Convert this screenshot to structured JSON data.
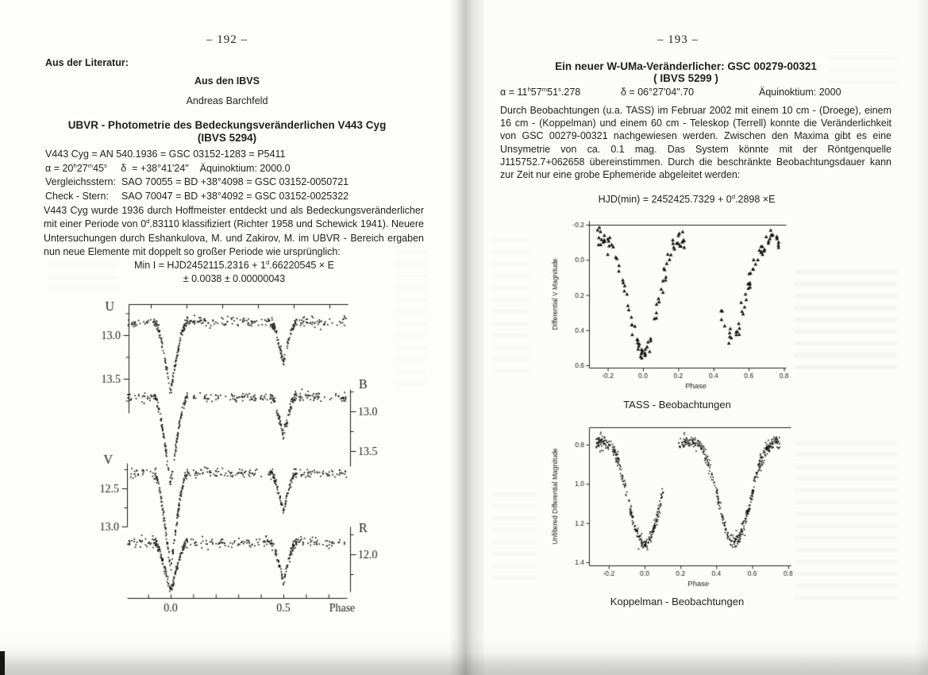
{
  "left_page": {
    "page_number": "–  192  –",
    "section_label": "Aus der Literatur:",
    "source_heading": "Aus den IBVS",
    "author": "Andreas Barchfeld",
    "title_line1": "UBVR - Photometrie des Bedeckungsveränderlichen V443 Cyg",
    "title_line2": "(IBVS 5294)",
    "object_info": {
      "line1": "V443 Cyg = AN 540.1936 = GSC 03152-1283 = P5411",
      "line2": "α = 20^{h}27^{m}45^{s}     δ  = +38°41'24\"    Äquinoktium: 2000.0",
      "line3_label": "Vergleichsstern:",
      "line3_value": "SAO 70055 = BD +38°4098 = GSC 03152-0050721",
      "line4_label": "Check - Stern:",
      "line4_value": "SAO 70047 = BD +38°4092 = GSC 03152-0025322"
    },
    "paragraph": "V443 Cyg wurde 1936 durch Hoffmeister entdeckt und als Bedeckungsveränderlicher mit einer Periode von 0^{d}.83110 klassifiziert (Richter 1958 und Schewick 1941). Neuere Untersuchungen durch Eshankulova, M. und Zakirov, M. im UBVR - Bereich ergaben nun neue Elemente mit doppelt so großer Periode wie ursprünglich:",
    "ephemeris_line1": "Min I = HJD2452115.2316 + 1^{d}.66220545 × E",
    "ephemeris_line2": "± 0.0038 ± 0.00000043"
  },
  "right_page": {
    "page_number": "–  193  –",
    "title_line1": "Ein neuer W-UMa-Veränderlicher: GSC 00279-00321",
    "title_line2": "( IBVS 5299 )",
    "coords": {
      "alpha": "α = 11^{h}57^{m}51^{s}.278",
      "delta": "δ = 06°27'04\".70",
      "equinox": "Äquinoktium: 2000"
    },
    "paragraph": "Durch Beobachtungen (u.a. TASS) im Februar 2002 mit einem 10 cm - (Droege), einem 16 cm - (Koppelman) und einem 60 cm - Teleskop (Terrell) konnte die Veränderlichkeit von GSC 00279-00321 nachgewiesen werden. Zwischen den Maxima gibt es eine Unsymetrie von ca. 0.1 mag.  Das System könnte mit der Röntgenquelle J115752.7+062658 übereinstimmen. Durch die beschränkte Beobachtungsdauer kann zur Zeit nur eine grobe Ephemeride abgeleitet werden:",
    "ephemeris": "HJD(min) = 2452425.7329 + 0^{d}.2898 ×E",
    "caption_tass": "TASS - Beobachtungen",
    "caption_koppelman": "Koppelman - Beobachtungen"
  },
  "chart_data": [
    {
      "id": "ubvr",
      "type": "scatter",
      "title": "UBVR light curves of eclipsing binary V443 Cyg",
      "xlabel": "Phase",
      "x_tick_labels": [
        "0.0",
        "0.5"
      ],
      "x_tick_values": [
        0.0,
        0.5
      ],
      "x_range": [
        -0.19,
        0.78
      ],
      "primary_minimum_phase": 0.0,
      "secondary_minimum_phase": 0.5,
      "bands": [
        {
          "name": "U",
          "axis_side": "left",
          "tick_labels": [
            "13.0",
            "13.5"
          ],
          "tick_values": [
            13.0,
            13.5
          ],
          "baseline_mag": 12.85,
          "primary_depth_mag": 0.78,
          "secondary_depth_mag": 0.47
        },
        {
          "name": "B",
          "axis_side": "right",
          "tick_labels": [
            "13.0",
            "13.5"
          ],
          "tick_values": [
            13.0,
            13.5
          ],
          "baseline_mag": 12.82,
          "primary_depth_mag": 1.08,
          "secondary_depth_mag": 0.48
        },
        {
          "name": "V",
          "axis_side": "left",
          "tick_labels": [
            "12.5",
            "13.0"
          ],
          "tick_values": [
            12.5,
            13.0
          ],
          "baseline_mag": 12.3,
          "primary_depth_mag": 1.25,
          "secondary_depth_mag": 0.5
        },
        {
          "name": "R",
          "axis_side": "right",
          "tick_labels": [
            "12.0"
          ],
          "tick_values": [
            12.0
          ],
          "baseline_mag": 11.85,
          "primary_depth_mag": 0.62,
          "secondary_depth_mag": 0.5
        }
      ]
    },
    {
      "id": "tass",
      "type": "scatter",
      "marker": "triangle",
      "title": "TASS observations of GSC 00279-00321",
      "xlabel": "Phase",
      "ylabel": "Differential V Magnitude",
      "y_inverted": true,
      "y_range": [
        -0.2,
        0.6
      ],
      "y_tick_labels": [
        "-0.2",
        "0.0",
        "0.2",
        "0.4",
        "0.6"
      ],
      "y_tick_values": [
        -0.2,
        0.0,
        0.2,
        0.4,
        0.6
      ],
      "x_tick_labels": [
        "-0.2",
        "0.0",
        "0.2",
        "0.4",
        "0.6",
        "0.8"
      ],
      "x_tick_values": [
        -0.2,
        0.0,
        0.2,
        0.4,
        0.6,
        0.8
      ],
      "max_brightness_mag": -0.115,
      "primary_min_mag": 0.52,
      "secondary_min_mag": 0.45,
      "phase_coverage": [
        [
          -0.26,
          0.235
        ],
        [
          0.44,
          0.77
        ]
      ]
    },
    {
      "id": "koppelman",
      "type": "scatter",
      "marker": "dot",
      "title": "Koppelman observations of GSC 00279-00321",
      "xlabel": "Phase",
      "ylabel": "Unfiltered Differential Magnitude",
      "y_inverted": true,
      "y_range": [
        0.75,
        1.4
      ],
      "y_tick_labels": [
        "0.8",
        "1.0",
        "1.2",
        "1.4"
      ],
      "y_tick_values": [
        0.8,
        1.0,
        1.2,
        1.4
      ],
      "x_tick_labels": [
        "-0.2",
        "0.0",
        "0.2",
        "0.4",
        "0.6",
        "0.8"
      ],
      "x_tick_values": [
        -0.2,
        0.0,
        0.2,
        0.4,
        0.6,
        0.8
      ],
      "max_brightness_mag": 0.785,
      "primary_min_mag": 1.31,
      "secondary_min_mag": 1.3,
      "phase_coverage": [
        [
          -0.27,
          0.105
        ],
        [
          0.19,
          0.755
        ]
      ]
    }
  ]
}
